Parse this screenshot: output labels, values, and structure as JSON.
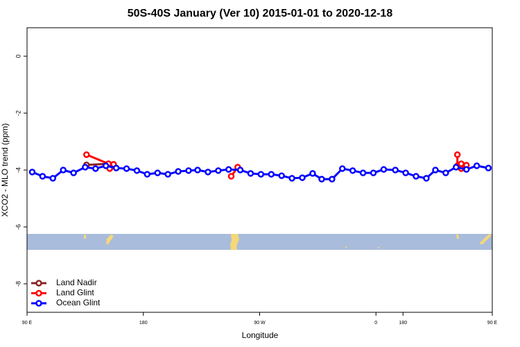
{
  "chart_data": {
    "type": "line",
    "title": "50S-40S January (Ver 10)   2015-01-01 to 2020-12-18",
    "x_label": "Longitude",
    "y_label": "XCO2 - MLO trend (ppm)",
    "xlim": [
      90,
      450
    ],
    "ylim": [
      -9,
      1
    ],
    "xticks": [
      {
        "value": 90,
        "label": "90 E"
      },
      180,
      {
        "value": 270,
        "label": "90 W"
      },
      {
        "value": 360,
        "label": "0"
      },
      {
        "value": 450,
        "label": "90 E"
      },
      {
        "value": 540,
        "label": "180"
      }
    ],
    "yticks": [
      0,
      -2,
      -4,
      -6,
      -8
    ],
    "legend": "bottom-left",
    "series": [
      {
        "name": "Land Nadir",
        "color": "#8b2323",
        "x": [
          136,
          153
        ],
        "values": [
          -3.82,
          -3.78
        ]
      },
      {
        "name": "Land Glint",
        "color": "#ff0000",
        "x": [
          136,
          153,
          154,
          157,
          200,
          248,
          253,
          400,
          423,
          423,
          426,
          426,
          430
        ],
        "values": [
          -3.46,
          -3.78,
          -3.95,
          -3.8,
          null,
          -4.22,
          -3.9,
          null,
          -3.46,
          -3.85,
          -3.78,
          -3.95,
          -3.83
        ]
      },
      {
        "name": "Ocean Glint",
        "color": "#0000ff",
        "x": [
          94,
          102,
          110,
          118,
          126,
          135,
          143,
          151,
          159,
          167,
          175,
          183,
          191,
          199,
          207,
          215,
          222,
          230,
          238,
          246,
          255,
          263,
          271,
          279,
          287,
          295,
          303,
          311,
          318,
          326,
          334,
          342,
          350,
          358,
          366,
          375,
          383,
          391,
          399,
          406,
          414,
          422,
          430,
          438,
          447
        ],
        "values": [
          -4.07,
          -4.22,
          -4.29,
          -4.0,
          -4.1,
          -3.9,
          -3.95,
          -3.85,
          -3.93,
          -3.95,
          -4.02,
          -4.15,
          -4.1,
          -4.15,
          -4.05,
          -4.02,
          -4.0,
          -4.07,
          -4.02,
          -3.98,
          -4.0,
          -4.12,
          -4.15,
          -4.15,
          -4.2,
          -4.29,
          -4.27,
          -4.12,
          -4.32,
          -4.32,
          -3.95,
          -4.02,
          -4.1,
          -4.1,
          -3.98,
          -4.0,
          -4.1,
          -4.22,
          -4.29,
          -4.0,
          -4.1,
          -3.9,
          -3.98,
          -3.85,
          -3.93
        ]
      }
    ]
  }
}
